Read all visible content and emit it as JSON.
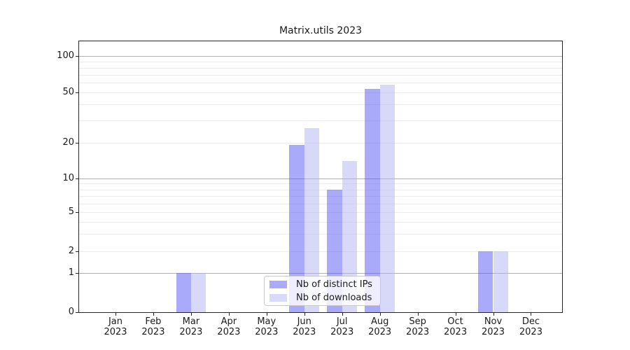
{
  "chart_data": {
    "type": "bar",
    "title": "Matrix.utils 2023",
    "yscale": "symlog",
    "ylim": [
      0,
      130
    ],
    "grid": true,
    "y_ticks": [
      0,
      1,
      2,
      5,
      10,
      20,
      50,
      100
    ],
    "major_gridlines": [
      1,
      10,
      100
    ],
    "minor_gridlines": [
      2,
      3,
      4,
      5,
      6,
      7,
      8,
      9,
      20,
      30,
      40,
      50,
      60,
      70,
      80,
      90
    ],
    "categories": [
      {
        "month": "Jan",
        "year": "2023"
      },
      {
        "month": "Feb",
        "year": "2023"
      },
      {
        "month": "Mar",
        "year": "2023"
      },
      {
        "month": "Apr",
        "year": "2023"
      },
      {
        "month": "May",
        "year": "2023"
      },
      {
        "month": "Jun",
        "year": "2023"
      },
      {
        "month": "Jul",
        "year": "2023"
      },
      {
        "month": "Aug",
        "year": "2023"
      },
      {
        "month": "Sep",
        "year": "2023"
      },
      {
        "month": "Oct",
        "year": "2023"
      },
      {
        "month": "Nov",
        "year": "2023"
      },
      {
        "month": "Dec",
        "year": "2023"
      }
    ],
    "series": [
      {
        "name": "Nb of distinct IPs",
        "color": "#aaaaf8",
        "fill": "rgba(85,85,245,0.5)",
        "values": [
          0,
          0,
          1,
          0,
          0,
          19,
          8,
          53,
          0,
          0,
          2,
          0
        ]
      },
      {
        "name": "Nb of downloads",
        "color": "#d9d9f9",
        "fill": "rgba(177,177,244,0.5)",
        "values": [
          0,
          0,
          1,
          0,
          0,
          26,
          14,
          58,
          0,
          0,
          2,
          0
        ]
      }
    ],
    "legend": {
      "position": "lower center",
      "entries": [
        "Nb of distinct IPs",
        "Nb of downloads"
      ]
    },
    "colors": {
      "major_grid": "#b0b0b0",
      "minor_grid": "#ececec",
      "axis": "#262626",
      "text": "#1a1a1a"
    }
  }
}
